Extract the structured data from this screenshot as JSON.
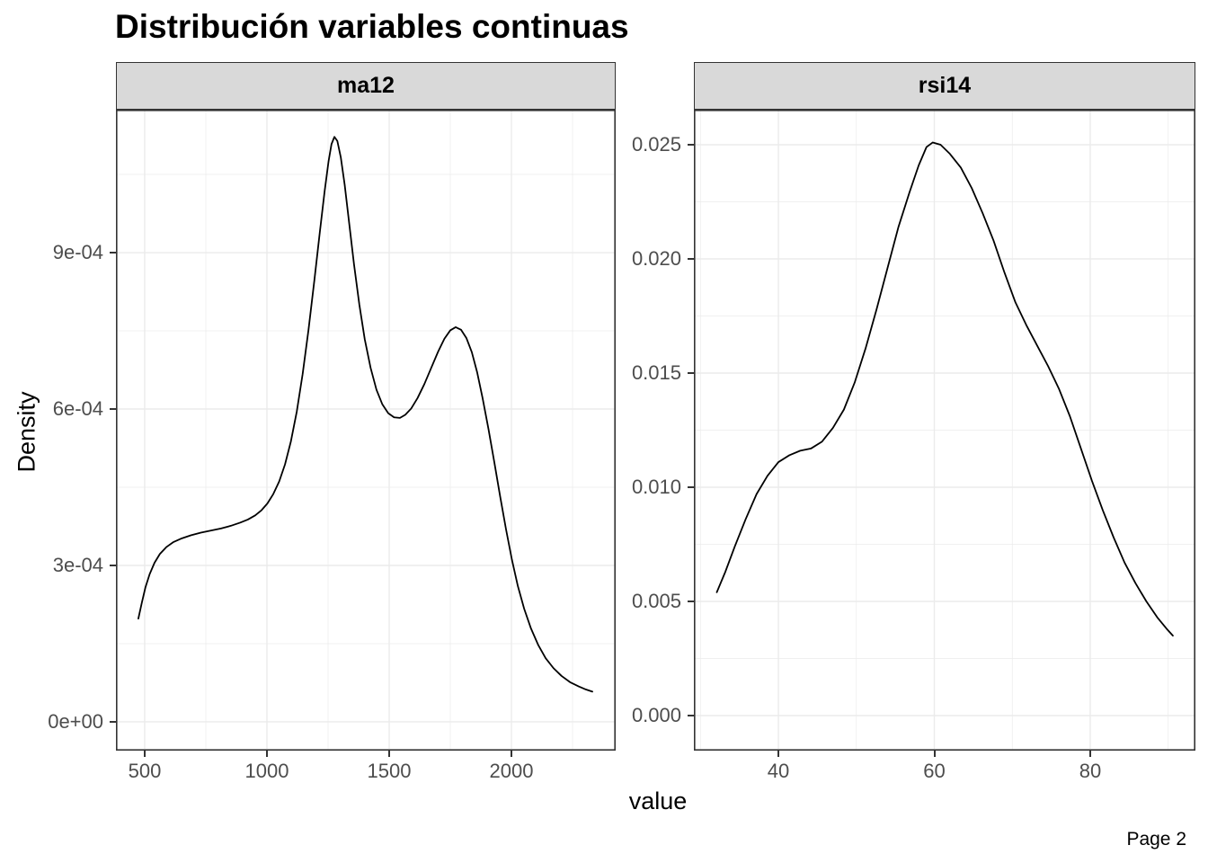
{
  "title": "Distribución variables continuas",
  "page_label": "Page 2",
  "colors": {
    "background": "#FFFFFF",
    "strip_background": "#D9D9D9",
    "panel_border": "#333333",
    "gridline": "#EBEBEB",
    "curve": "#000000",
    "tick_text": "#4D4D4D",
    "text": "#000000"
  },
  "chart_data": {
    "type": "line",
    "subtype": "density-facets",
    "title": "Distribución variables continuas",
    "xlabel": "value",
    "ylabel": "Density",
    "legend": false,
    "grid": true,
    "facets": [
      {
        "name": "ma12",
        "xlim": [
          382.4,
          2426.4
        ],
        "ylim": [
          -5.52e-05,
          0.0011742
        ],
        "x_ticks": [
          500,
          1000,
          1500,
          2000
        ],
        "x_tick_labels": [
          "500",
          "1000",
          "1500",
          "2000"
        ],
        "x_minor": [
          750,
          1250,
          1750,
          2250
        ],
        "y_ticks": [
          0,
          0.0003,
          0.0006,
          0.0009
        ],
        "y_tick_labels": [
          "0e+00",
          "3e-04",
          "6e-04",
          "9e-04"
        ],
        "y_minor": [
          0.00015,
          0.00045,
          0.00075,
          0.00105
        ],
        "series": [
          [
            474,
            0.000198
          ],
          [
            488,
            0.000228
          ],
          [
            503,
            0.000258
          ],
          [
            520,
            0.000283
          ],
          [
            540,
            0.000305
          ],
          [
            562,
            0.000322
          ],
          [
            588,
            0.000335
          ],
          [
            618,
            0.000345
          ],
          [
            652,
            0.000352
          ],
          [
            690,
            0.000358
          ],
          [
            730,
            0.000363
          ],
          [
            772,
            0.000367
          ],
          [
            812,
            0.000371
          ],
          [
            852,
            0.000376
          ],
          [
            890,
            0.000382
          ],
          [
            922,
            0.000388
          ],
          [
            952,
            0.000396
          ],
          [
            978,
            0.000406
          ],
          [
            1002,
            0.000419
          ],
          [
            1026,
            0.000437
          ],
          [
            1050,
            0.000461
          ],
          [
            1074,
            0.000494
          ],
          [
            1098,
            0.000538
          ],
          [
            1122,
            0.000595
          ],
          [
            1146,
            0.000667
          ],
          [
            1170,
            0.000752
          ],
          [
            1194,
            0.000847
          ],
          [
            1216,
            0.000938
          ],
          [
            1236,
            0.001018
          ],
          [
            1252,
            0.001075
          ],
          [
            1264,
            0.001108
          ],
          [
            1276,
            0.001122
          ],
          [
            1288,
            0.001114
          ],
          [
            1302,
            0.001083
          ],
          [
            1318,
            0.00103
          ],
          [
            1336,
            0.000958
          ],
          [
            1356,
            0.000878
          ],
          [
            1378,
            0.0008
          ],
          [
            1400,
            0.000734
          ],
          [
            1424,
            0.000679
          ],
          [
            1448,
            0.000637
          ],
          [
            1472,
            0.000609
          ],
          [
            1496,
            0.000592
          ],
          [
            1520,
            0.000584
          ],
          [
            1544,
            0.000583
          ],
          [
            1566,
            0.000589
          ],
          [
            1590,
            0.000601
          ],
          [
            1616,
            0.000621
          ],
          [
            1644,
            0.000648
          ],
          [
            1672,
            0.000679
          ],
          [
            1700,
            0.00071
          ],
          [
            1726,
            0.000735
          ],
          [
            1750,
            0.000751
          ],
          [
            1772,
            0.000757
          ],
          [
            1794,
            0.000752
          ],
          [
            1816,
            0.000736
          ],
          [
            1838,
            0.000709
          ],
          [
            1860,
            0.00067
          ],
          [
            1882,
            0.000621
          ],
          [
            1906,
            0.000562
          ],
          [
            1930,
            0.000498
          ],
          [
            1954,
            0.000432
          ],
          [
            1978,
            0.000369
          ],
          [
            2002,
            0.000311
          ],
          [
            2026,
            0.000261
          ],
          [
            2052,
            0.000217
          ],
          [
            2080,
            0.000179
          ],
          [
            2110,
            0.000147
          ],
          [
            2140,
            0.000122
          ],
          [
            2172,
            0.000103
          ],
          [
            2205,
            8.8e-05
          ],
          [
            2240,
            7.6e-05
          ],
          [
            2275,
            6.8e-05
          ],
          [
            2305,
            6.2e-05
          ],
          [
            2331,
            5.8e-05
          ]
        ]
      },
      {
        "name": "rsi14",
        "xlim": [
          29.16,
          93.49
        ],
        "ylim": [
          -0.0015354,
          0.0265354
        ],
        "x_ticks": [
          40,
          60,
          80
        ],
        "x_tick_labels": [
          "40",
          "60",
          "80"
        ],
        "x_minor": [
          30,
          50,
          70,
          90
        ],
        "y_ticks": [
          0,
          0.005,
          0.01,
          0.015,
          0.02,
          0.025
        ],
        "y_tick_labels": [
          "0.000",
          "0.005",
          "0.010",
          "0.015",
          "0.020",
          "0.025"
        ],
        "y_minor": [
          0.0025,
          0.0075,
          0.0125,
          0.0175,
          0.0225
        ],
        "series": [
          [
            32.1,
            0.0054
          ],
          [
            33.2,
            0.0063
          ],
          [
            34.4,
            0.0074
          ],
          [
            35.8,
            0.0086
          ],
          [
            37.2,
            0.0097
          ],
          [
            38.6,
            0.0105
          ],
          [
            40,
            0.0111
          ],
          [
            41.4,
            0.0114
          ],
          [
            42.8,
            0.0116
          ],
          [
            44.2,
            0.0117
          ],
          [
            45.6,
            0.012
          ],
          [
            47,
            0.0126
          ],
          [
            48.4,
            0.0134
          ],
          [
            49.8,
            0.0146
          ],
          [
            51.2,
            0.0161
          ],
          [
            52.6,
            0.0178
          ],
          [
            54,
            0.0196
          ],
          [
            55.4,
            0.0214
          ],
          [
            56.8,
            0.0229
          ],
          [
            58,
            0.0241
          ],
          [
            59,
            0.0249
          ],
          [
            59.8,
            0.0251
          ],
          [
            60.8,
            0.025
          ],
          [
            62,
            0.0246
          ],
          [
            63.4,
            0.024
          ],
          [
            64.8,
            0.0231
          ],
          [
            66.2,
            0.022
          ],
          [
            67.6,
            0.0208
          ],
          [
            69,
            0.0194
          ],
          [
            70.4,
            0.0181
          ],
          [
            71.8,
            0.0171
          ],
          [
            73.2,
            0.0162
          ],
          [
            74.6,
            0.0153
          ],
          [
            76,
            0.0143
          ],
          [
            77.4,
            0.0131
          ],
          [
            78.8,
            0.0117
          ],
          [
            80.2,
            0.0103
          ],
          [
            81.6,
            0.009
          ],
          [
            83,
            0.0078
          ],
          [
            84.4,
            0.0067
          ],
          [
            85.8,
            0.0058
          ],
          [
            87.2,
            0.005
          ],
          [
            88.6,
            0.0043
          ],
          [
            89.8,
            0.0038
          ],
          [
            90.6,
            0.0035
          ]
        ]
      }
    ]
  }
}
